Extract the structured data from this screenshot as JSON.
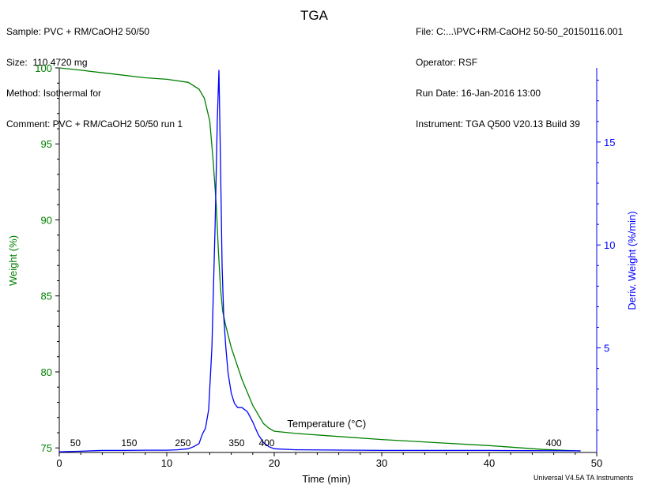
{
  "header": {
    "left": [
      "Sample: PVC + RM/CaOH2 50/50",
      "Size:  110.4720 mg",
      "Method: Isothermal for",
      "Comment: PVC + RM/CaOH2 50/50 run 1"
    ],
    "right": [
      "File: C:...\\PVC+RM-CaOH2 50-50_20150116.001",
      "Operator: RSF",
      "Run Date: 16-Jan-2016 13:00",
      "Instrument: TGA Q500 V20.13 Build 39"
    ]
  },
  "footer": "Universal V4.5A TA Instruments",
  "colors": {
    "weight": "#008000",
    "deriv": "#0000ff",
    "axis": "#000000"
  },
  "chart_data": {
    "type": "line",
    "title": "TGA",
    "xlabel": "Time (min)",
    "ylabel": "Weight (%)",
    "y2label": "Deriv. Weight (%/min)",
    "xlim": [
      0,
      50
    ],
    "ylim": [
      74.7,
      100
    ],
    "y2lim": [
      -0.08,
      18.6
    ],
    "xticks": [
      0,
      10,
      20,
      30,
      40,
      50
    ],
    "yticks": [
      75,
      80,
      85,
      90,
      95,
      100
    ],
    "y2ticks": [
      5,
      10,
      15
    ],
    "grid": false,
    "series": [
      {
        "name": "Weight (%)",
        "axis": "left",
        "color": "#008000",
        "x": [
          0,
          2,
          5,
          8,
          10,
          12,
          13,
          13.5,
          14,
          14.3,
          14.6,
          14.8,
          15,
          15.2,
          15.5,
          16,
          17,
          18,
          19,
          19.5,
          20,
          22,
          25,
          30,
          35,
          40,
          45,
          48.5
        ],
        "y": [
          100,
          99.85,
          99.6,
          99.35,
          99.25,
          99.05,
          98.6,
          98.0,
          96.5,
          94.0,
          91.0,
          88.0,
          85.5,
          84.0,
          83.0,
          81.6,
          79.5,
          77.8,
          76.6,
          76.3,
          76.1,
          75.95,
          75.8,
          75.55,
          75.35,
          75.15,
          74.9,
          74.8
        ]
      },
      {
        "name": "Deriv. Weight (%/min)",
        "axis": "right",
        "color": "#0000ff",
        "x": [
          0,
          2,
          4,
          6,
          8,
          10,
          11,
          12,
          12.5,
          13,
          13.3,
          13.6,
          13.9,
          14.2,
          14.5,
          14.7,
          14.85,
          15,
          15.15,
          15.3,
          15.5,
          15.7,
          16,
          16.3,
          16.6,
          17,
          17.5,
          18,
          18.5,
          19,
          19.5,
          20,
          22,
          30,
          40,
          48.5
        ],
        "y": [
          -0.05,
          -0.02,
          0.02,
          0.02,
          0.03,
          0.03,
          0.05,
          0.1,
          0.2,
          0.35,
          0.8,
          1.1,
          2.0,
          5.0,
          11.0,
          16.0,
          18.5,
          14.0,
          9.0,
          6.5,
          5.0,
          3.8,
          2.8,
          2.3,
          2.1,
          2.1,
          1.9,
          1.4,
          0.8,
          0.4,
          0.2,
          0.1,
          0.05,
          0.02,
          0.02,
          0.0
        ]
      }
    ],
    "annotations": {
      "label": "Temperature (°C)",
      "temps": [
        {
          "t": "50",
          "x": 1.5
        },
        {
          "t": "150",
          "x": 6.5
        },
        {
          "t": "250",
          "x": 11.5
        },
        {
          "t": "350",
          "x": 16.5
        },
        {
          "t": "400",
          "x": 19.3
        },
        {
          "t": "400",
          "x": 46
        }
      ]
    }
  }
}
